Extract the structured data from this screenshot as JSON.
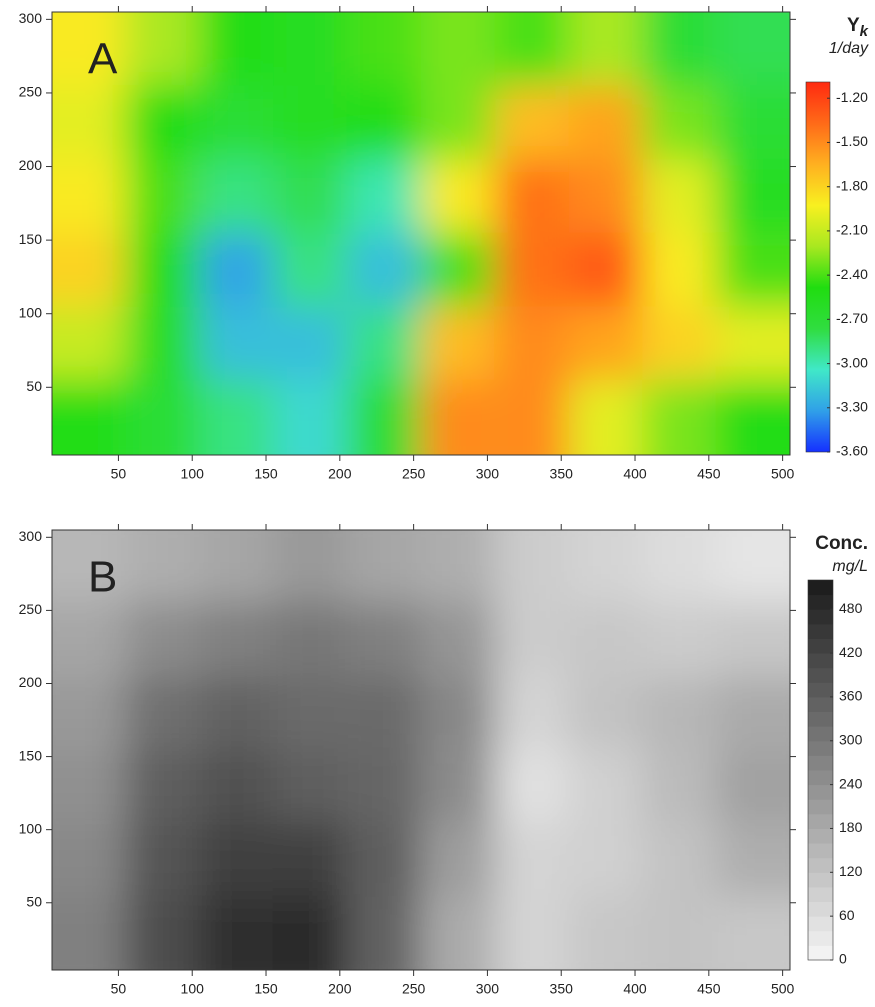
{
  "chart_data": [
    {
      "type": "heatmap",
      "panel_label": "A",
      "colorbar_title": {
        "main": "Y",
        "sub": "k"
      },
      "colorbar_unit": "1/day",
      "x": [
        30,
        80,
        130,
        180,
        230,
        280,
        330,
        380,
        430,
        480
      ],
      "y": [
        280,
        230,
        180,
        130,
        80,
        30
      ],
      "values": [
        [
          -1.9,
          -2.2,
          -2.5,
          -2.6,
          -2.4,
          -2.3,
          -2.4,
          -2.2,
          -2.7,
          -2.8
        ],
        [
          -2.0,
          -2.5,
          -2.7,
          -2.6,
          -2.5,
          -2.3,
          -1.7,
          -1.6,
          -2.3,
          -2.7
        ],
        [
          -1.9,
          -2.4,
          -2.9,
          -2.8,
          -3.0,
          -1.9,
          -1.4,
          -1.5,
          -2.0,
          -2.6
        ],
        [
          -1.8,
          -2.5,
          -3.3,
          -2.9,
          -3.2,
          -2.4,
          -1.4,
          -1.3,
          -1.9,
          -2.4
        ],
        [
          -2.1,
          -2.6,
          -3.2,
          -3.2,
          -2.9,
          -1.7,
          -1.5,
          -1.6,
          -1.8,
          -2.0
        ],
        [
          -2.5,
          -2.7,
          -2.9,
          -3.1,
          -2.7,
          -1.5,
          -1.5,
          -2.0,
          -2.3,
          -2.5
        ]
      ],
      "xlim": [
        5,
        505
      ],
      "ylim": [
        4,
        305
      ],
      "xticks": [
        50,
        100,
        150,
        200,
        250,
        300,
        350,
        400,
        450,
        500
      ],
      "yticks": [
        50,
        100,
        150,
        200,
        250,
        300
      ],
      "clim": [
        -3.6,
        -1.09
      ],
      "colors": [
        "#1530ff",
        "#30a0e8",
        "#40e8c8",
        "#30dd40",
        "#20dd10",
        "#a8e820",
        "#f8f020",
        "#ffb020",
        "#ff6a18",
        "#ff2a10"
      ],
      "cticks": [
        {
          "value": -1.2,
          "label": "-1.20"
        },
        {
          "value": -1.5,
          "label": "-1.50"
        },
        {
          "value": -1.8,
          "label": "-1.80"
        },
        {
          "value": -2.1,
          "label": "-2.10"
        },
        {
          "value": -2.4,
          "label": "-2.40"
        },
        {
          "value": -2.7,
          "label": "-2.70"
        },
        {
          "value": -3.0,
          "label": "-3.00"
        },
        {
          "value": -3.3,
          "label": "-3.30"
        },
        {
          "value": -3.6,
          "label": "-3.60"
        }
      ]
    },
    {
      "type": "heatmap",
      "panel_label": "B",
      "colorbar_title": {
        "main": "Conc."
      },
      "colorbar_unit": "mg/L",
      "x": [
        30,
        80,
        130,
        180,
        230,
        280,
        330,
        380,
        430,
        480
      ],
      "y": [
        280,
        230,
        180,
        130,
        80,
        30
      ],
      "values": [
        [
          150,
          170,
          190,
          220,
          190,
          170,
          100,
          80,
          60,
          40
        ],
        [
          190,
          250,
          280,
          300,
          280,
          230,
          100,
          110,
          100,
          110
        ],
        [
          220,
          320,
          350,
          330,
          330,
          260,
          80,
          120,
          150,
          180
        ],
        [
          240,
          360,
          390,
          360,
          340,
          250,
          50,
          90,
          140,
          200
        ],
        [
          260,
          380,
          430,
          430,
          360,
          210,
          80,
          90,
          120,
          170
        ],
        [
          280,
          400,
          470,
          480,
          350,
          180,
          80,
          110,
          120,
          110
        ]
      ],
      "xlim": [
        5,
        505
      ],
      "ylim": [
        4,
        305
      ],
      "xticks": [
        50,
        100,
        150,
        200,
        250,
        300,
        350,
        400,
        450,
        500
      ],
      "yticks": [
        50,
        100,
        150,
        200,
        250,
        300
      ],
      "clim": [
        0,
        520
      ],
      "colors": [
        "#f6f6f6",
        "#1a1a1a"
      ],
      "cticks": [
        0,
        60,
        120,
        180,
        240,
        300,
        360,
        420,
        480
      ]
    }
  ]
}
